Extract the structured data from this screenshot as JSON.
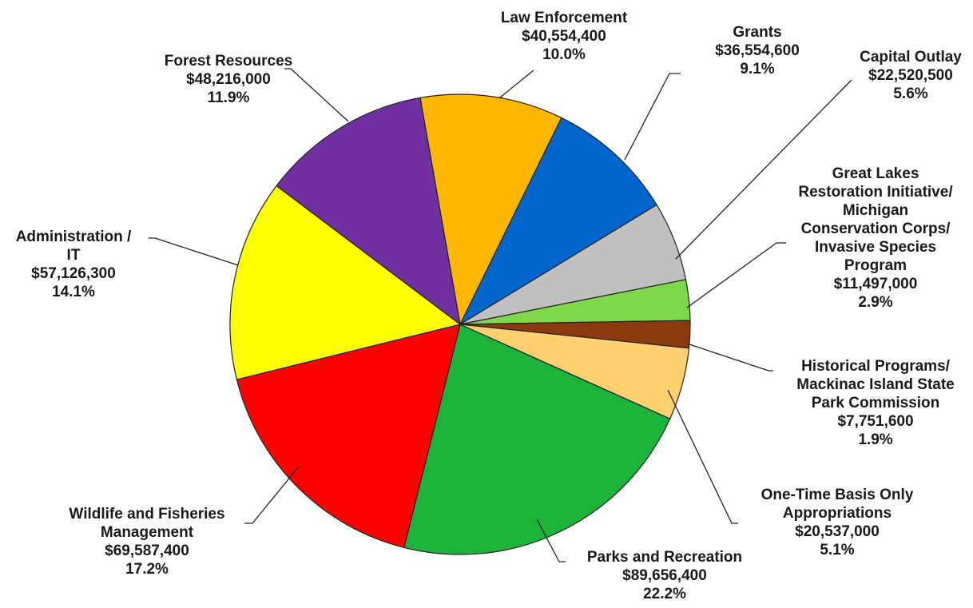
{
  "chart_data": {
    "type": "pie",
    "title": "",
    "unit": "$",
    "slices": [
      {
        "name": "Law Enforcement",
        "lines": [
          "Law Enforcement"
        ],
        "amount": "$40,554,400",
        "pct": "10.0%",
        "value": 40554400,
        "color": "#FFB700"
      },
      {
        "name": "Grants",
        "lines": [
          "Grants"
        ],
        "amount": "$36,554,600",
        "pct": "9.1%",
        "value": 36554600,
        "color": "#0066CC"
      },
      {
        "name": "Capital Outlay",
        "lines": [
          "Capital Outlay"
        ],
        "amount": "$22,520,500",
        "pct": "5.6%",
        "value": 22520500,
        "color": "#C0C0C0"
      },
      {
        "name": "Great Lakes Restoration Initiative/ Michigan Conservation Corps/ Invasive Species Program",
        "lines": [
          "Great Lakes",
          "Restoration Initiative/",
          "Michigan",
          "Conservation Corps/",
          "Invasive Species",
          "Program"
        ],
        "amount": "$11,497,000",
        "pct": "2.9%",
        "value": 11497000,
        "color": "#7FD84A"
      },
      {
        "name": "Historical Programs/ Mackinac Island State Park Commission",
        "lines": [
          "Historical Programs/",
          "Mackinac Island State",
          "Park Commission"
        ],
        "amount": "$7,751,600",
        "pct": "1.9%",
        "value": 7751600,
        "color": "#8B3A0F"
      },
      {
        "name": "One-Time Basis Only Appropriations",
        "lines": [
          "One-Time Basis Only",
          "Appropriations"
        ],
        "amount": "$20,537,000",
        "pct": "5.1%",
        "value": 20537000,
        "color": "#FFD070"
      },
      {
        "name": "Parks and Recreation",
        "lines": [
          "Parks and Recreation"
        ],
        "amount": "$89,656,400",
        "pct": "22.2%",
        "value": 89656400,
        "color": "#1DB23A"
      },
      {
        "name": "Wildlife and Fisheries Management",
        "lines": [
          "Wildlife and Fisheries",
          "Management"
        ],
        "amount": "$69,587,400",
        "pct": "17.2%",
        "value": 69587400,
        "color": "#FF0000"
      },
      {
        "name": "Administration / IT",
        "lines": [
          "Administration /",
          "IT"
        ],
        "amount": "$57,126,300",
        "pct": "14.1%",
        "value": 57126300,
        "color": "#FFFF00"
      },
      {
        "name": "Forest Resources",
        "lines": [
          "Forest Resources"
        ],
        "amount": "$48,216,000",
        "pct": "11.9%",
        "value": 48216000,
        "color": "#7030A0"
      }
    ]
  }
}
